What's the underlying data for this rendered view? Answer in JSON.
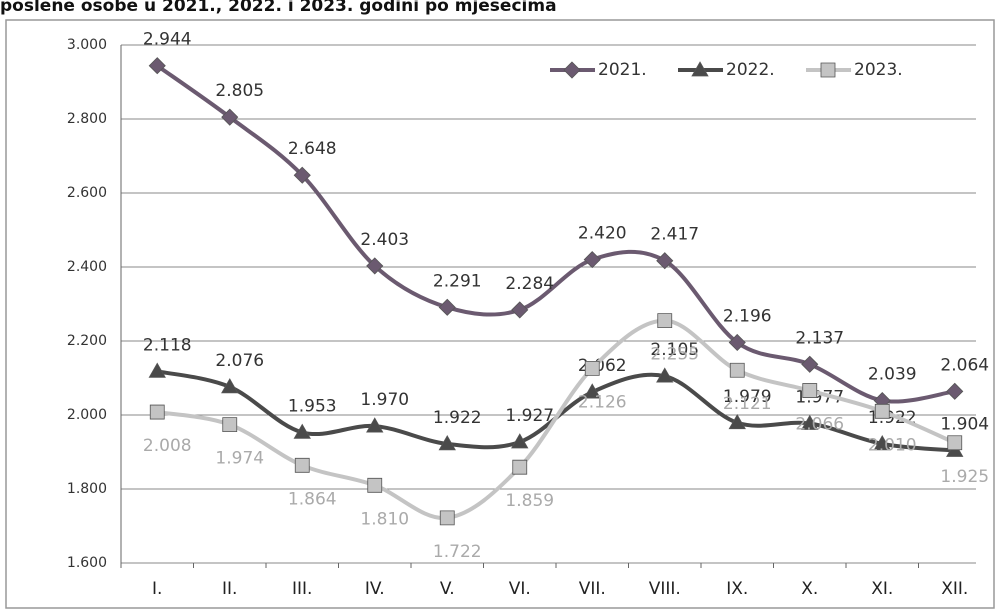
{
  "chart_data": {
    "type": "line",
    "title": "poslene osobe u 2021., 2022. i 2023. godini po mjesecima",
    "categories": [
      "I.",
      "II.",
      "III.",
      "IV.",
      "V.",
      "VI.",
      "VII.",
      "VIII.",
      "IX.",
      "X.",
      "XI.",
      "XII."
    ],
    "series": [
      {
        "name": "2021.",
        "color": "#6b5a70",
        "marker": "diamond",
        "values": [
          2944,
          2805,
          2648,
          2403,
          2291,
          2284,
          2420,
          2417,
          2196,
          2137,
          2039,
          2064
        ],
        "value_labels": [
          "2.944",
          "2.805",
          "2.648",
          "2.403",
          "2.291",
          "2.284",
          "2.420",
          "2.417",
          "2.196",
          "2.137",
          "2.039",
          "2.064"
        ]
      },
      {
        "name": "2022.",
        "color": "#4a4a4a",
        "marker": "triangle",
        "values": [
          2118,
          2076,
          1953,
          1970,
          1922,
          1927,
          2062,
          2105,
          1979,
          1977,
          1922,
          1904
        ],
        "value_labels": [
          "2.118",
          "2.076",
          "1.953",
          "1.970",
          "1.922",
          "1.927",
          "2.062",
          "2.105",
          "1.979",
          "1.977",
          "1.922",
          "1.904"
        ]
      },
      {
        "name": "2023.",
        "color": "#c4c4c4",
        "marker": "square",
        "values": [
          2008,
          1974,
          1864,
          1810,
          1722,
          1859,
          2126,
          2255,
          2121,
          2066,
          2010,
          1925
        ],
        "value_labels": [
          "2.008",
          "1.974",
          "1.864",
          "1.810",
          "1.722",
          "1.859",
          "2.126",
          "2.255",
          "2.121",
          "2.066",
          "2.010",
          "1.925"
        ]
      }
    ],
    "ylim": [
      1600,
      3000
    ],
    "yticks": [
      {
        "value": 1600,
        "label": "1.600"
      },
      {
        "value": 1800,
        "label": "1.800"
      },
      {
        "value": 2000,
        "label": "2.000"
      },
      {
        "value": 2200,
        "label": "2.200"
      },
      {
        "value": 2400,
        "label": "2.400"
      },
      {
        "value": 2600,
        "label": "2.600"
      },
      {
        "value": 2800,
        "label": "2.800"
      },
      {
        "value": 3000,
        "label": "3.000"
      }
    ],
    "grid": true,
    "legend": "top-right"
  }
}
